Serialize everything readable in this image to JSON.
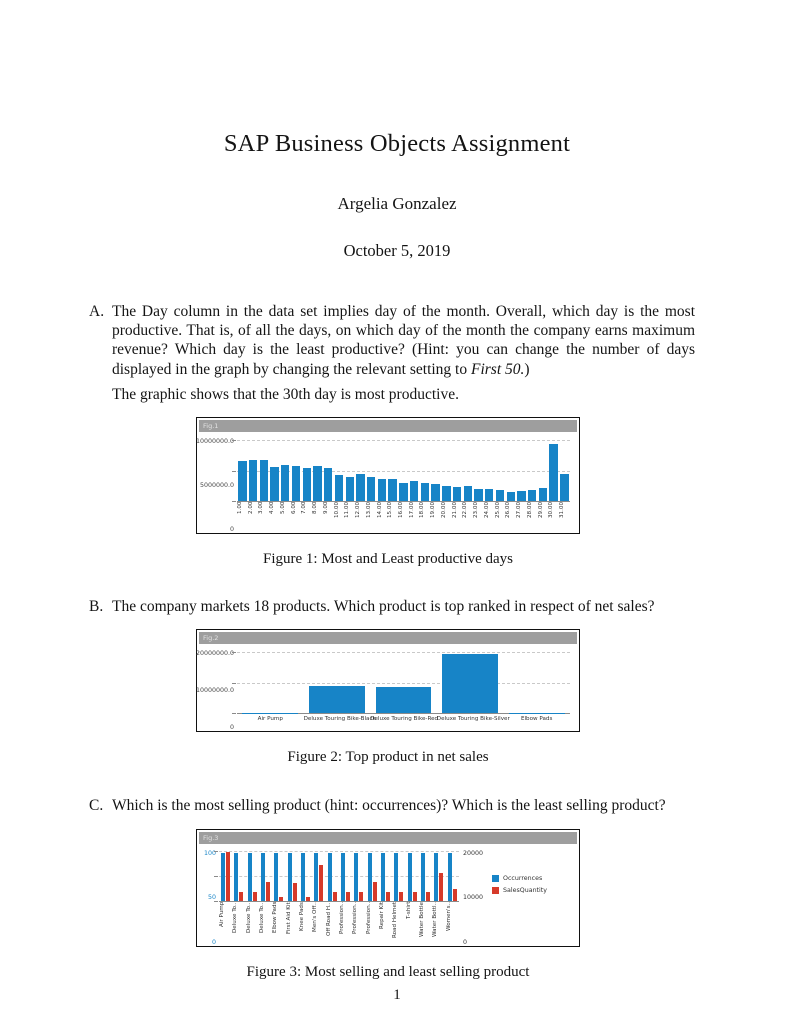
{
  "document": {
    "title": "SAP Business Objects Assignment",
    "author": "Argelia Gonzalez",
    "date": "October 5, 2019",
    "page_number": "1"
  },
  "items": {
    "a": {
      "label": "A.",
      "text": "The Day column in the data set implies day of the month. Overall, which day is the most productive. That is, of all the days, on which day of the month the company earns maximum revenue? Which day is the least productive? (Hint: you can change the number of days displayed in the graph by changing the relevant setting to ",
      "hint_italic": "First 50.",
      "text_close": ")",
      "answer": "The graphic shows that the 30th day is most productive."
    },
    "b": {
      "label": "B.",
      "text": "The company markets 18 products. Which product is top ranked in respect of net sales?"
    },
    "c": {
      "label": "C.",
      "text": "Which is the most selling product (hint: occurrences)? Which is the least selling product?"
    }
  },
  "figures": [
    {
      "caption": "Figure 1: Most and Least productive days"
    },
    {
      "caption": "Figure 2: Top product in net sales"
    },
    {
      "caption": "Figure 3: Most selling and least selling product"
    }
  ],
  "chart_data": [
    {
      "type": "bar",
      "header_label": "Fig.1",
      "categories": [
        "1.00",
        "2.00",
        "3.00",
        "4.00",
        "5.00",
        "6.00",
        "7.00",
        "8.00",
        "9.00",
        "10.00",
        "11.00",
        "12.00",
        "13.00",
        "14.00",
        "15.00",
        "16.00",
        "17.00",
        "18.00",
        "19.00",
        "20.00",
        "21.00",
        "22.00",
        "23.00",
        "24.00",
        "25.00",
        "26.00",
        "27.00",
        "28.00",
        "29.00",
        "30.00",
        "31.00"
      ],
      "values": [
        6500000,
        6800000,
        6800000,
        5600000,
        5900000,
        5700000,
        5400000,
        5700000,
        5400000,
        4300000,
        4000000,
        4400000,
        4000000,
        3700000,
        3600000,
        2900000,
        3300000,
        3000000,
        2800000,
        2500000,
        2300000,
        2400000,
        2000000,
        2000000,
        1900000,
        1500000,
        1700000,
        1800000,
        2100000,
        9300000,
        4500000
      ],
      "ylim": [
        0,
        10500000
      ],
      "ytick_values": [
        10000000,
        5000000,
        0
      ],
      "ytick_labels": [
        "10000000.0",
        "5000000.0",
        "0"
      ],
      "bar_color": "#1784c7",
      "grid": "horizontal-dashed",
      "x_labels_rotated": true
    },
    {
      "type": "bar",
      "header_label": "Fig.2",
      "categories": [
        "Air Pump",
        "Deluxe Touring Bike-Black",
        "Deluxe Touring Bike-Red",
        "Deluxe Touring Bike-Silver",
        "Elbow Pads"
      ],
      "values": [
        250000,
        9000000,
        8600000,
        19500000,
        150000
      ],
      "ylim": [
        0,
        21000000
      ],
      "ytick_values": [
        20000000,
        10000000,
        0
      ],
      "ytick_labels": [
        "20000000.0",
        "10000000.0",
        "0"
      ],
      "bar_color": "#1784c7",
      "grid": "horizontal-dashed",
      "x_labels_rotated": false
    },
    {
      "type": "grouped-bar-dual-axis",
      "header_label": "Fig.3",
      "categories": [
        "Air Pump",
        "Deluxe To..",
        "Deluxe To..",
        "Deluxe To..",
        "Elbow Pads",
        "First Aid Kit",
        "Knee Pads",
        "Men's Off..",
        "Off Road H..",
        "Profession..",
        "Profession..",
        "Profession..",
        "Repair Kit",
        "Road Helmet",
        "T-shirt",
        "Water Bottle",
        "Water Bottl..",
        "Women's.."
      ],
      "series": [
        {
          "name": "Occurrences",
          "axis": "left",
          "color": "#1784c7",
          "values": [
            97,
            97,
            97,
            97,
            97,
            97,
            97,
            97,
            97,
            97,
            97,
            97,
            97,
            97,
            97,
            97,
            97,
            97
          ]
        },
        {
          "name": "SalesQuantity",
          "axis": "right",
          "color": "#d63a2a",
          "values": [
            19600,
            3300,
            3300,
            7400,
            1400,
            7000,
            1400,
            14500,
            3300,
            3400,
            3400,
            7300,
            3300,
            3300,
            3400,
            3300,
            11200,
            4500
          ]
        }
      ],
      "left_axis": {
        "tick_labels": [
          "100",
          "50",
          "0"
        ],
        "tick_values": [
          100,
          50,
          0
        ],
        "max": 105,
        "color": "#1784c7"
      },
      "right_axis": {
        "tick_labels": [
          "20000",
          "10000",
          "0"
        ],
        "tick_values": [
          20000,
          10000,
          0
        ],
        "max": 21000,
        "color": "#333333"
      },
      "legend": {
        "position": "right",
        "entries": [
          "Occurrences",
          "SalesQuantity"
        ]
      },
      "grid": "horizontal-dashed",
      "x_labels_rotated": true
    }
  ]
}
